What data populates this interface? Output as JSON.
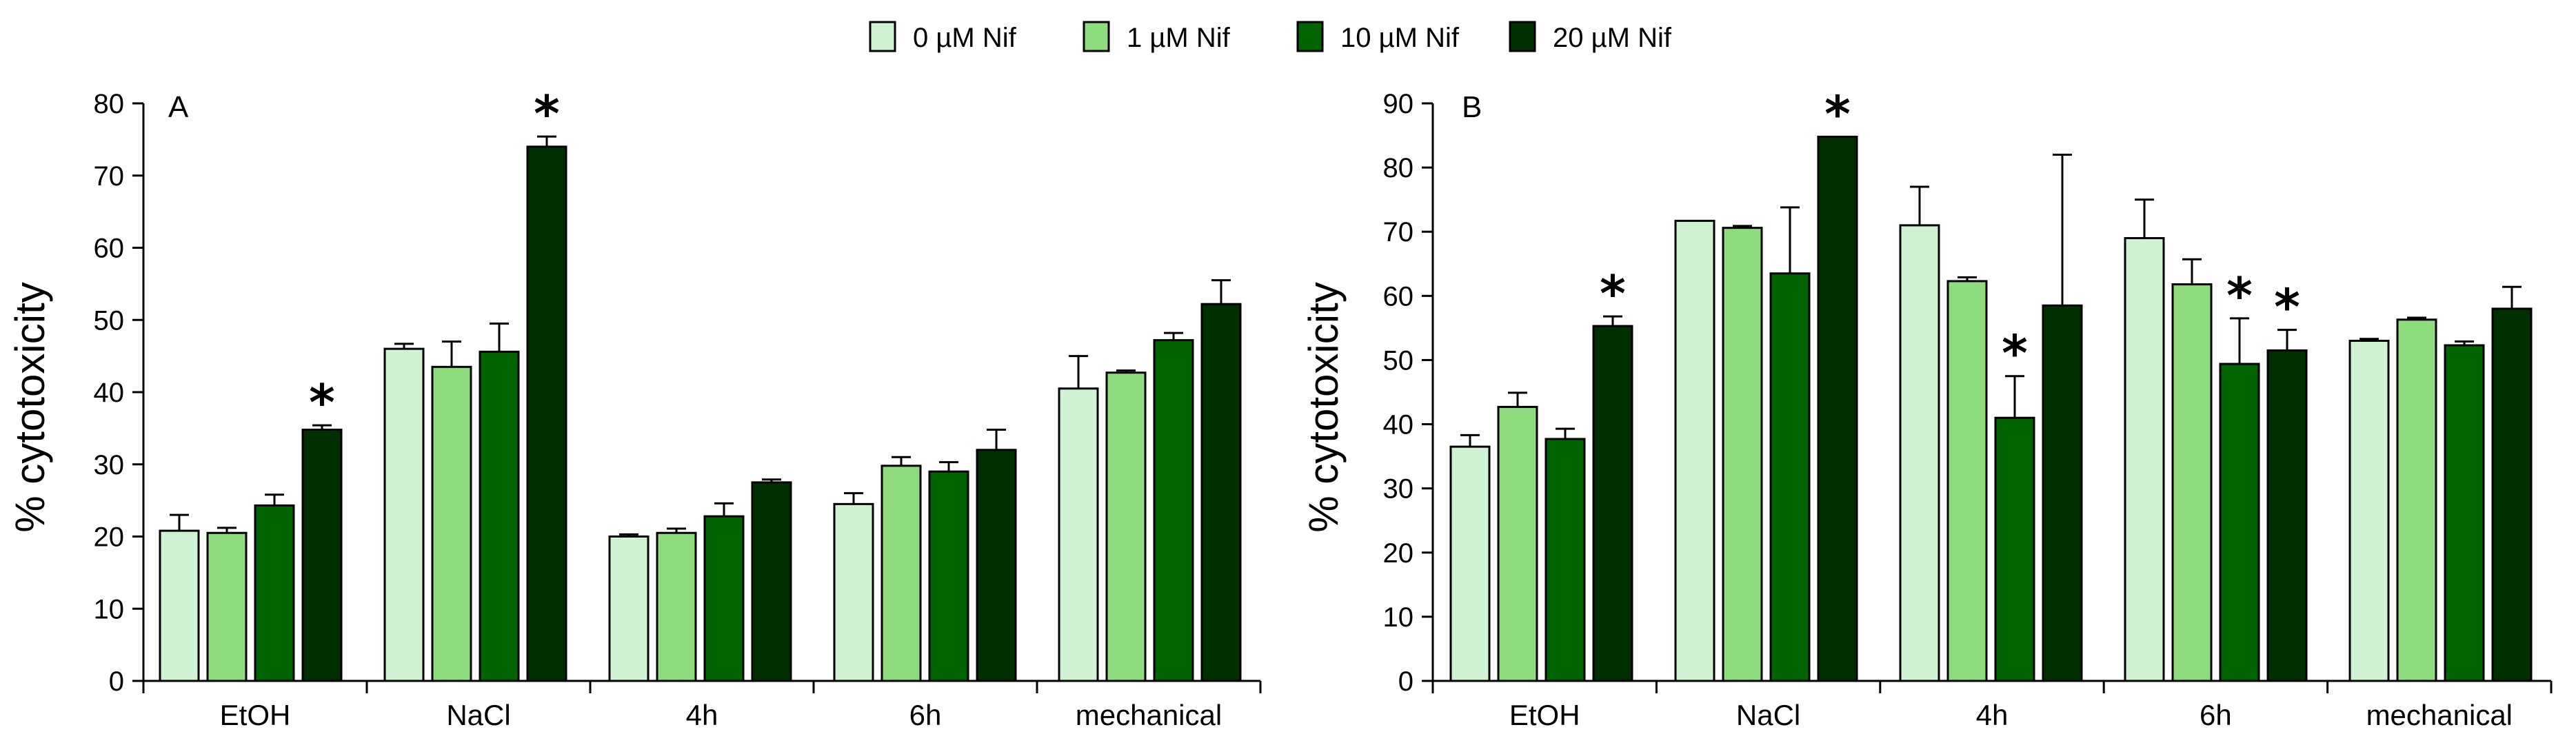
{
  "legend": {
    "entries": [
      {
        "label": "0 µM Nif",
        "color": "#cef2d2"
      },
      {
        "label": "1 µM Nif",
        "color": "#8fdc7e"
      },
      {
        "label": "10 µM Nif",
        "color": "#006400"
      },
      {
        "label": "20 µM Nif",
        "color": "#003000"
      }
    ]
  },
  "chart_data": [
    {
      "type": "bar",
      "panel_label": "A",
      "ylabel": "% cytotoxicity",
      "ylim": [
        0,
        80
      ],
      "yticks": [
        0,
        10,
        20,
        30,
        40,
        50,
        60,
        70,
        80
      ],
      "categories": [
        "EtOH",
        "NaCl",
        "4h",
        "6h",
        "mechanical"
      ],
      "series": [
        {
          "name": "0 µM Nif",
          "values": [
            20.8,
            46.0,
            20.0,
            24.5,
            40.5
          ],
          "errors": [
            2.2,
            0.7,
            0.3,
            1.5,
            4.5
          ],
          "significant": [
            false,
            false,
            false,
            false,
            false
          ]
        },
        {
          "name": "1 µM Nif",
          "values": [
            20.5,
            43.5,
            20.5,
            29.8,
            42.7
          ],
          "errors": [
            0.7,
            3.5,
            0.6,
            1.2,
            0.3
          ],
          "significant": [
            false,
            false,
            false,
            false,
            false
          ]
        },
        {
          "name": "10 µM Nif",
          "values": [
            24.3,
            45.6,
            22.8,
            29.0,
            47.2
          ],
          "errors": [
            1.5,
            3.9,
            1.8,
            1.3,
            1.0
          ],
          "significant": [
            false,
            false,
            false,
            false,
            false
          ]
        },
        {
          "name": "20 µM Nif",
          "values": [
            34.8,
            74.0,
            27.5,
            32.0,
            52.2
          ],
          "errors": [
            0.6,
            1.4,
            0.4,
            2.8,
            3.3
          ],
          "significant": [
            true,
            true,
            false,
            false,
            false
          ]
        }
      ]
    },
    {
      "type": "bar",
      "panel_label": "B",
      "ylabel": "% cytotoxicity",
      "ylim": [
        0,
        90
      ],
      "yticks": [
        0,
        10,
        20,
        30,
        40,
        50,
        60,
        70,
        80,
        90
      ],
      "categories": [
        "EtOH",
        "NaCl",
        "4h",
        "6h",
        "mechanical"
      ],
      "series": [
        {
          "name": "0 µM Nif",
          "values": [
            36.5,
            71.7,
            71.0,
            69.0,
            53.0
          ],
          "errors": [
            1.8,
            0.0,
            6.0,
            6.0,
            0.3
          ],
          "significant": [
            false,
            false,
            false,
            false,
            false
          ]
        },
        {
          "name": "1 µM Nif",
          "values": [
            42.7,
            70.6,
            62.3,
            61.8,
            56.3
          ],
          "errors": [
            2.2,
            0.3,
            0.6,
            3.9,
            0.3
          ],
          "significant": [
            false,
            false,
            false,
            false,
            false
          ]
        },
        {
          "name": "10 µM Nif",
          "values": [
            37.7,
            63.5,
            41.0,
            49.4,
            52.3
          ],
          "errors": [
            1.6,
            10.3,
            6.5,
            7.1,
            0.6
          ],
          "significant": [
            false,
            false,
            true,
            true,
            false
          ]
        },
        {
          "name": "20 µM Nif",
          "values": [
            55.3,
            84.8,
            58.5,
            51.5,
            58.0
          ],
          "errors": [
            1.5,
            0.0,
            23.5,
            3.2,
            3.4
          ],
          "significant": [
            true,
            true,
            false,
            true,
            false
          ]
        }
      ]
    }
  ],
  "significance_marker": "*"
}
